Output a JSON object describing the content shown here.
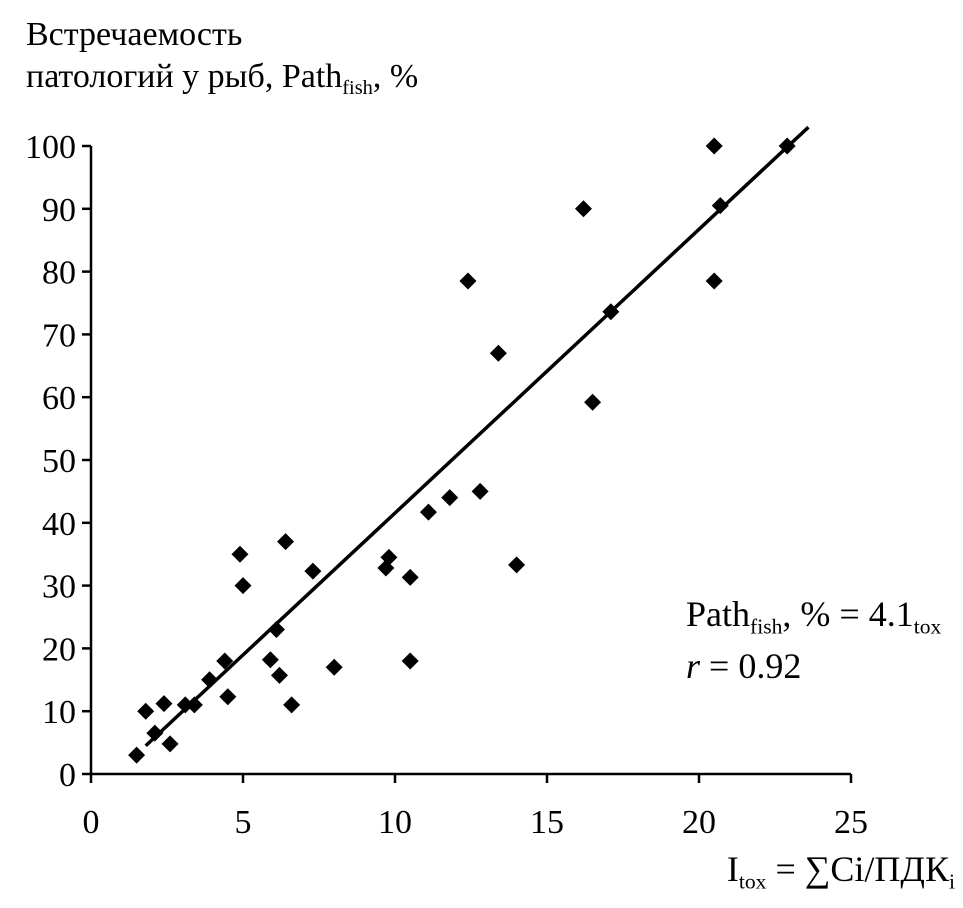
{
  "chart_data": {
    "type": "scatter",
    "ylabel": {
      "line1": "Встречаемость",
      "line2_main": "патологий у рыб, Path",
      "line2_sub": "fish",
      "line2_end": ", %"
    },
    "xlabel": {
      "main": "I",
      "sub": "tox",
      "mid": " = ∑Ci/ПДК",
      "sub2": "i"
    },
    "equation": {
      "main": "Path",
      "sub": "fish",
      "mid": ", % = 4.1",
      "sub2": "tox",
      "r": "r",
      "r_value": " = 0.92"
    },
    "xlim": [
      0,
      25
    ],
    "ylim": [
      0,
      100
    ],
    "x_ticks": [
      0,
      5,
      10,
      15,
      20,
      25
    ],
    "y_ticks": [
      0,
      10,
      20,
      30,
      40,
      50,
      60,
      70,
      80,
      90,
      100
    ],
    "points": [
      [
        1.5,
        3
      ],
      [
        1.8,
        10
      ],
      [
        2.1,
        6.5
      ],
      [
        2.4,
        11.2
      ],
      [
        2.6,
        4.8
      ],
      [
        3.1,
        11
      ],
      [
        3.4,
        11
      ],
      [
        3.9,
        15
      ],
      [
        4.4,
        18
      ],
      [
        4.5,
        12.3
      ],
      [
        4.9,
        35
      ],
      [
        5.0,
        30
      ],
      [
        5.9,
        18.2
      ],
      [
        6.1,
        23
      ],
      [
        6.2,
        15.7
      ],
      [
        6.4,
        37
      ],
      [
        6.6,
        11
      ],
      [
        7.3,
        32.3
      ],
      [
        8.0,
        17
      ],
      [
        9.7,
        32.8
      ],
      [
        9.8,
        34.5
      ],
      [
        10.5,
        31.3
      ],
      [
        10.5,
        18
      ],
      [
        11.1,
        41.7
      ],
      [
        11.8,
        44
      ],
      [
        12.4,
        78.5
      ],
      [
        12.8,
        45
      ],
      [
        13.4,
        67
      ],
      [
        14.0,
        33.3
      ],
      [
        16.2,
        90
      ],
      [
        16.5,
        59.2
      ],
      [
        17.1,
        73.6
      ],
      [
        20.5,
        100
      ],
      [
        20.5,
        78.5
      ],
      [
        20.7,
        90.5
      ],
      [
        22.9,
        100
      ]
    ],
    "trendline": {
      "x": [
        1.8,
        23.6
      ],
      "y": [
        4.5,
        103
      ]
    },
    "grid": false,
    "legend": "none"
  }
}
